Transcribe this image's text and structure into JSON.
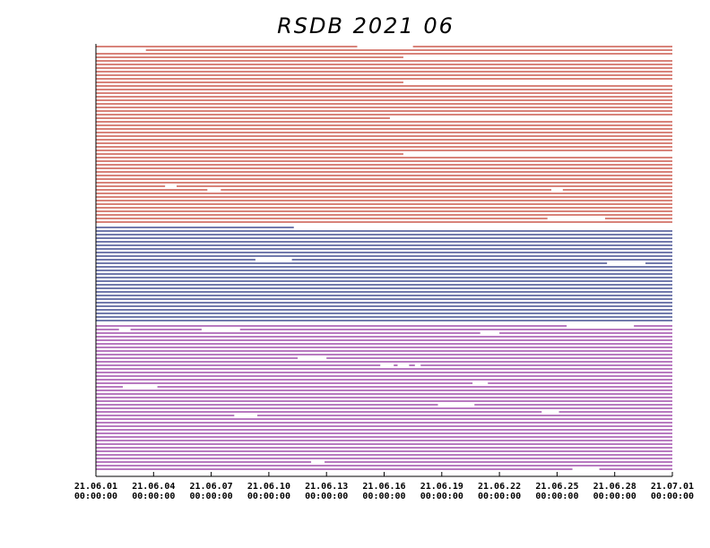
{
  "chart_data": {
    "type": "availability",
    "title": "RSDB  2021  06",
    "xlim": [
      0,
      30
    ],
    "xticks": [
      {
        "value": 0,
        "label": "21.06.01"
      },
      {
        "value": 3,
        "label": "21.06.04"
      },
      {
        "value": 6,
        "label": "21.06.07"
      },
      {
        "value": 9,
        "label": "21.06.10"
      },
      {
        "value": 12,
        "label": "21.06.13"
      },
      {
        "value": 15,
        "label": "21.06.16"
      },
      {
        "value": 18,
        "label": "21.06.19"
      },
      {
        "value": 21,
        "label": "21.06.22"
      },
      {
        "value": 24,
        "label": "21.06.25"
      },
      {
        "value": 27,
        "label": "21.06.28"
      },
      {
        "value": 30,
        "label": "21.07.01"
      }
    ],
    "xtick_times": [
      "00:00:00",
      "00:00:00",
      "00:00:00",
      "00:00:00",
      "00:00:00",
      "00:00:00",
      "00:00:00",
      "00:00:00",
      "00:00:00",
      "00:00:00",
      "00:00:00"
    ],
    "groups": [
      {
        "color": "#c0392b",
        "rows": [
          [
            [
              0,
              13.6
            ],
            [
              16.5,
              30
            ]
          ],
          [
            [
              2.6,
              30
            ]
          ],
          [
            [
              0,
              30
            ]
          ],
          [
            [
              0,
              16
            ]
          ],
          [
            [
              0,
              30
            ]
          ],
          [
            [
              0,
              30
            ]
          ],
          [
            [
              0,
              30
            ]
          ],
          [
            [
              0,
              30
            ]
          ],
          [
            [
              0,
              30
            ]
          ],
          [
            [
              0,
              30
            ]
          ],
          [
            [
              0,
              16
            ]
          ],
          [
            [
              0,
              30
            ]
          ],
          [
            [
              0,
              30
            ]
          ],
          [
            [
              0,
              30
            ]
          ],
          [
            [
              0,
              30
            ]
          ],
          [
            [
              0,
              30
            ]
          ],
          [
            [
              0,
              30
            ]
          ],
          [
            [
              0,
              30
            ]
          ],
          [
            [
              0,
              30
            ]
          ],
          [
            [
              0,
              30
            ]
          ],
          [
            [
              0,
              15.3
            ]
          ],
          [
            [
              0,
              30
            ]
          ],
          [
            [
              0,
              30
            ]
          ],
          [
            [
              0,
              30
            ]
          ],
          [
            [
              0,
              30
            ]
          ],
          [
            [
              0,
              30
            ]
          ],
          [
            [
              0,
              30
            ]
          ],
          [
            [
              0,
              30
            ]
          ],
          [
            [
              0,
              30
            ]
          ],
          [
            [
              0,
              30
            ]
          ],
          [
            [
              0,
              16
            ]
          ],
          [
            [
              0,
              30
            ]
          ],
          [
            [
              0,
              30
            ]
          ],
          [
            [
              0,
              30
            ]
          ],
          [
            [
              0,
              30
            ]
          ],
          [
            [
              0,
              30
            ]
          ],
          [
            [
              0,
              30
            ]
          ],
          [
            [
              0,
              30
            ]
          ],
          [
            [
              0,
              30
            ]
          ],
          [
            [
              0,
              3.6
            ],
            [
              4.2,
              30
            ]
          ],
          [
            [
              0,
              5.8
            ],
            [
              6.5,
              23.7
            ],
            [
              24.3,
              30
            ]
          ],
          [
            [
              0,
              30
            ]
          ],
          [
            [
              0,
              30
            ]
          ],
          [
            [
              0,
              30
            ]
          ],
          [
            [
              0,
              30
            ]
          ],
          [
            [
              0,
              30
            ]
          ],
          [
            [
              0,
              30
            ]
          ],
          [
            [
              0,
              30
            ]
          ],
          [
            [
              0,
              23.5
            ],
            [
              26.5,
              30
            ]
          ],
          [
            [
              0,
              30
            ]
          ]
        ]
      },
      {
        "color": "#1f2a7a",
        "rows": [
          [
            [
              0,
              10.3
            ]
          ],
          [
            [
              0,
              30
            ]
          ],
          [
            [
              0,
              30
            ]
          ],
          [
            [
              0,
              30
            ]
          ],
          [
            [
              0,
              30
            ]
          ],
          [
            [
              0,
              30
            ]
          ],
          [
            [
              0,
              30
            ]
          ],
          [
            [
              0,
              30
            ]
          ],
          [
            [
              0,
              30
            ]
          ],
          [
            [
              0,
              8.3
            ],
            [
              10.2,
              30
            ]
          ],
          [
            [
              0,
              26.6
            ],
            [
              28.6,
              30
            ]
          ],
          [
            [
              0,
              30
            ]
          ],
          [
            [
              0,
              30
            ]
          ],
          [
            [
              0,
              30
            ]
          ],
          [
            [
              0,
              30
            ]
          ],
          [
            [
              0,
              30
            ]
          ],
          [
            [
              0,
              30
            ]
          ],
          [
            [
              0,
              30
            ]
          ],
          [
            [
              0,
              30
            ]
          ],
          [
            [
              0,
              30
            ]
          ],
          [
            [
              0,
              30
            ]
          ],
          [
            [
              0,
              30
            ]
          ],
          [
            [
              0,
              30
            ]
          ],
          [
            [
              0,
              30
            ]
          ],
          [
            [
              0,
              30
            ]
          ],
          [
            [
              0,
              30
            ]
          ],
          [
            [
              0,
              30
            ]
          ]
        ]
      },
      {
        "color": "#8e2a9a",
        "rows": [
          [
            [
              0,
              24.5
            ],
            [
              28,
              30
            ]
          ],
          [
            [
              0,
              1.2
            ],
            [
              1.8,
              5.5
            ],
            [
              7.5,
              30
            ]
          ],
          [
            [
              0,
              20
            ],
            [
              21,
              30
            ]
          ],
          [
            [
              0,
              30
            ]
          ],
          [
            [
              0,
              30
            ]
          ],
          [
            [
              0,
              30
            ]
          ],
          [
            [
              0,
              30
            ]
          ],
          [
            [
              0,
              30
            ]
          ],
          [
            [
              0,
              30
            ]
          ],
          [
            [
              0,
              10.5
            ],
            [
              12,
              30
            ]
          ],
          [
            [
              0,
              30
            ]
          ],
          [
            [
              0,
              14.8
            ],
            [
              15.5,
              15.7
            ],
            [
              16.3,
              16.6
            ],
            [
              16.9,
              30
            ]
          ],
          [
            [
              0,
              30
            ]
          ],
          [
            [
              0,
              30
            ]
          ],
          [
            [
              0,
              30
            ]
          ],
          [
            [
              0,
              30
            ]
          ],
          [
            [
              0,
              19.6
            ],
            [
              20.4,
              30
            ]
          ],
          [
            [
              0,
              1.4
            ],
            [
              3.2,
              30
            ]
          ],
          [
            [
              0,
              30
            ]
          ],
          [
            [
              0,
              30
            ]
          ],
          [
            [
              0,
              30
            ]
          ],
          [
            [
              0,
              30
            ]
          ],
          [
            [
              0,
              17.8
            ],
            [
              19.7,
              30
            ]
          ],
          [
            [
              0,
              30
            ]
          ],
          [
            [
              0,
              23.2
            ],
            [
              24.1,
              30
            ]
          ],
          [
            [
              0,
              7.2
            ],
            [
              8.4,
              30
            ]
          ],
          [
            [
              0,
              30
            ]
          ],
          [
            [
              0,
              30
            ]
          ],
          [
            [
              0,
              30
            ]
          ],
          [
            [
              0,
              30
            ]
          ],
          [
            [
              0,
              30
            ]
          ],
          [
            [
              0,
              30
            ]
          ],
          [
            [
              0,
              30
            ]
          ],
          [
            [
              0,
              30
            ]
          ],
          [
            [
              0,
              30
            ]
          ],
          [
            [
              0,
              30
            ]
          ],
          [
            [
              0,
              30
            ]
          ],
          [
            [
              0,
              30
            ]
          ],
          [
            [
              0,
              11.2
            ],
            [
              11.9,
              30
            ]
          ],
          [
            [
              0,
              30
            ]
          ],
          [
            [
              0,
              24.8
            ],
            [
              26.2,
              30
            ]
          ]
        ]
      }
    ]
  }
}
